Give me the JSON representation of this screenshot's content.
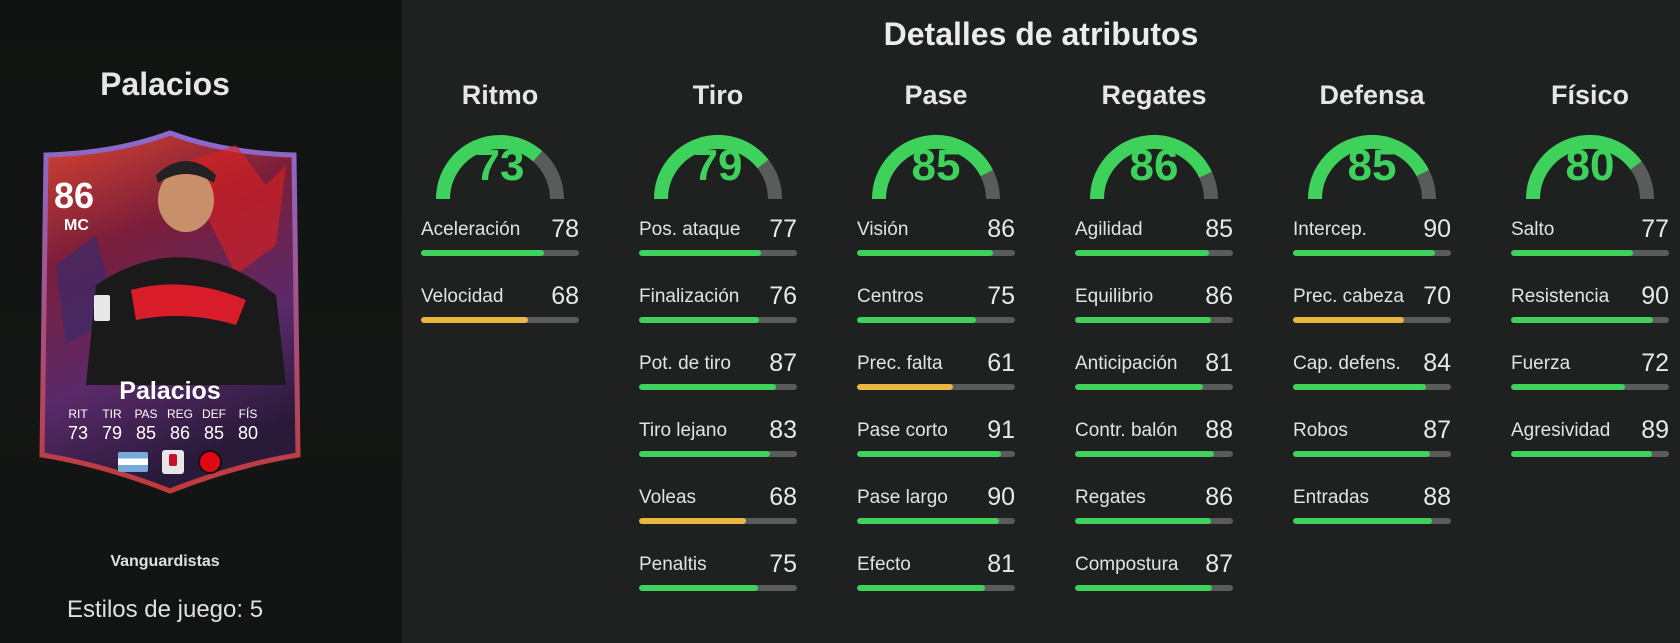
{
  "player": {
    "name": "Palacios",
    "card_name": "Palacios",
    "rating": "86",
    "position": "MC",
    "card_type": "Vanguardistas",
    "playstyles": "Estilos de juego: 5",
    "card_stats": [
      {
        "abbr": "RIT",
        "value": "73"
      },
      {
        "abbr": "TIR",
        "value": "79"
      },
      {
        "abbr": "PAS",
        "value": "85"
      },
      {
        "abbr": "REG",
        "value": "86"
      },
      {
        "abbr": "DEF",
        "value": "85"
      },
      {
        "abbr": "FÍS",
        "value": "80"
      }
    ]
  },
  "panel_title": "Detalles de atributos",
  "colors": {
    "green": "#3ed15c",
    "yellow": "#e8b840",
    "track": "#5a5c5b",
    "gauge_track": "#5a5c5b"
  },
  "categories": [
    {
      "name": "Ritmo",
      "value": 73,
      "stats": [
        {
          "label": "Aceleración",
          "value": 78
        },
        {
          "label": "Velocidad",
          "value": 68
        }
      ]
    },
    {
      "name": "Tiro",
      "value": 79,
      "stats": [
        {
          "label": "Pos. ataque",
          "value": 77
        },
        {
          "label": "Finalización",
          "value": 76
        },
        {
          "label": "Pot. de tiro",
          "value": 87
        },
        {
          "label": "Tiro lejano",
          "value": 83
        },
        {
          "label": "Voleas",
          "value": 68
        },
        {
          "label": "Penaltis",
          "value": 75
        }
      ]
    },
    {
      "name": "Pase",
      "value": 85,
      "stats": [
        {
          "label": "Visión",
          "value": 86
        },
        {
          "label": "Centros",
          "value": 75
        },
        {
          "label": "Prec. falta",
          "value": 61
        },
        {
          "label": "Pase corto",
          "value": 91
        },
        {
          "label": "Pase largo",
          "value": 90
        },
        {
          "label": "Efecto",
          "value": 81
        }
      ]
    },
    {
      "name": "Regates",
      "value": 86,
      "stats": [
        {
          "label": "Agilidad",
          "value": 85
        },
        {
          "label": "Equilibrio",
          "value": 86
        },
        {
          "label": "Anticipación",
          "value": 81
        },
        {
          "label": "Contr. balón",
          "value": 88
        },
        {
          "label": "Regates",
          "value": 86
        },
        {
          "label": "Compostura",
          "value": 87
        }
      ]
    },
    {
      "name": "Defensa",
      "value": 85,
      "stats": [
        {
          "label": "Intercep.",
          "value": 90
        },
        {
          "label": "Prec. cabeza",
          "value": 70
        },
        {
          "label": "Cap. defens.",
          "value": 84
        },
        {
          "label": "Robos",
          "value": 87
        },
        {
          "label": "Entradas",
          "value": 88
        }
      ]
    },
    {
      "name": "Físico",
      "value": 80,
      "stats": [
        {
          "label": "Salto",
          "value": 77
        },
        {
          "label": "Resistencia",
          "value": 90
        },
        {
          "label": "Fuerza",
          "value": 72
        },
        {
          "label": "Agresividad",
          "value": 89
        }
      ]
    }
  ]
}
